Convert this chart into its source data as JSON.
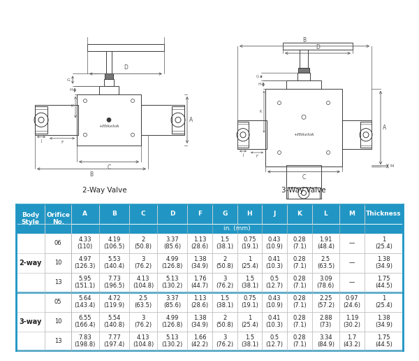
{
  "header_bg": "#2196C4",
  "header_text_color": "#FFFFFF",
  "border_color": "#2196C4",
  "col_headers": [
    "Body\nStyle",
    "Orifice\nNo.",
    "A",
    "B",
    "C",
    "D",
    "F",
    "G",
    "H",
    "J",
    "K",
    "L",
    "M",
    "Thickness"
  ],
  "unit_label": "in. (mm)",
  "label_2way": "2-Way Valve",
  "label_3way": "3-Way Valve",
  "rows": [
    [
      "",
      "06",
      "4.33\n(110)",
      "4.19\n(106.5)",
      "2\n(50.8)",
      "3.37\n(85.6)",
      "1.13\n(28.6)",
      "1.5\n(38.1)",
      "0.75\n(19.1)",
      "0.43\n(10.9)",
      "0.28\n(7.1)",
      "1.91\n(48.4)",
      "—",
      "1\n(25.4)"
    ],
    [
      "2-way",
      "10",
      "4.97\n(126.3)",
      "5.53\n(140.4)",
      "3\n(76.2)",
      "4.99\n(126.8)",
      "1.38\n(34.9)",
      "2\n(50.8)",
      "1\n(25.4)",
      "0.41\n(10.3)",
      "0.28\n(7.1)",
      "2.5\n(63.5)",
      "—",
      "1.38\n(34.9)"
    ],
    [
      "",
      "13",
      "5.95\n(151.1)",
      "7.73\n(196.5)",
      "4.13\n(104.8)",
      "5.13\n(130.2)",
      "1.76\n(44.7)",
      "3\n(76.2)",
      "1.5\n(38.1)",
      "0.5\n(12.7)",
      "0.28\n(7.1)",
      "3.09\n(78.6)",
      "—",
      "1.75\n(44.5)"
    ],
    [
      "",
      "05",
      "5.64\n(143.4)",
      "4.72\n(119.9)",
      "2.5\n(63.5)",
      "3.37\n(85.6)",
      "1.13\n(28.6)",
      "1.5\n(38.1)",
      "0.75\n(19.1)",
      "0.43\n(10.9)",
      "0.28\n(7.1)",
      "2.25\n(57.2)",
      "0.97\n(24.6)",
      "1\n(25.4)"
    ],
    [
      "3-way",
      "10",
      "6.55\n(166.4)",
      "5.54\n(140.8)",
      "3\n(76.2)",
      "4.99\n(126.8)",
      "1.38\n(34.9)",
      "2\n(50.8)",
      "1\n(25.4)",
      "0.41\n(10.3)",
      "0.28\n(7.1)",
      "2.88\n(73)",
      "1.19\n(30.2)",
      "1.38\n(34.9)"
    ],
    [
      "",
      "13",
      "7.83\n(198.8)",
      "7.77\n(197.4)",
      "4.13\n(104.8)",
      "5.13\n(130.2)",
      "1.66\n(42.2)",
      "3\n(76.2)",
      "1.5\n(38.1)",
      "0.5\n(12.7)",
      "0.28\n(7.1)",
      "3.34\n(84.9)",
      "1.7\n(43.2)",
      "1.75\n(44.5)"
    ]
  ],
  "body_style_spans": [
    {
      "label": "2-way",
      "start": 0,
      "end": 2
    },
    {
      "label": "3-way",
      "start": 3,
      "end": 5
    }
  ]
}
